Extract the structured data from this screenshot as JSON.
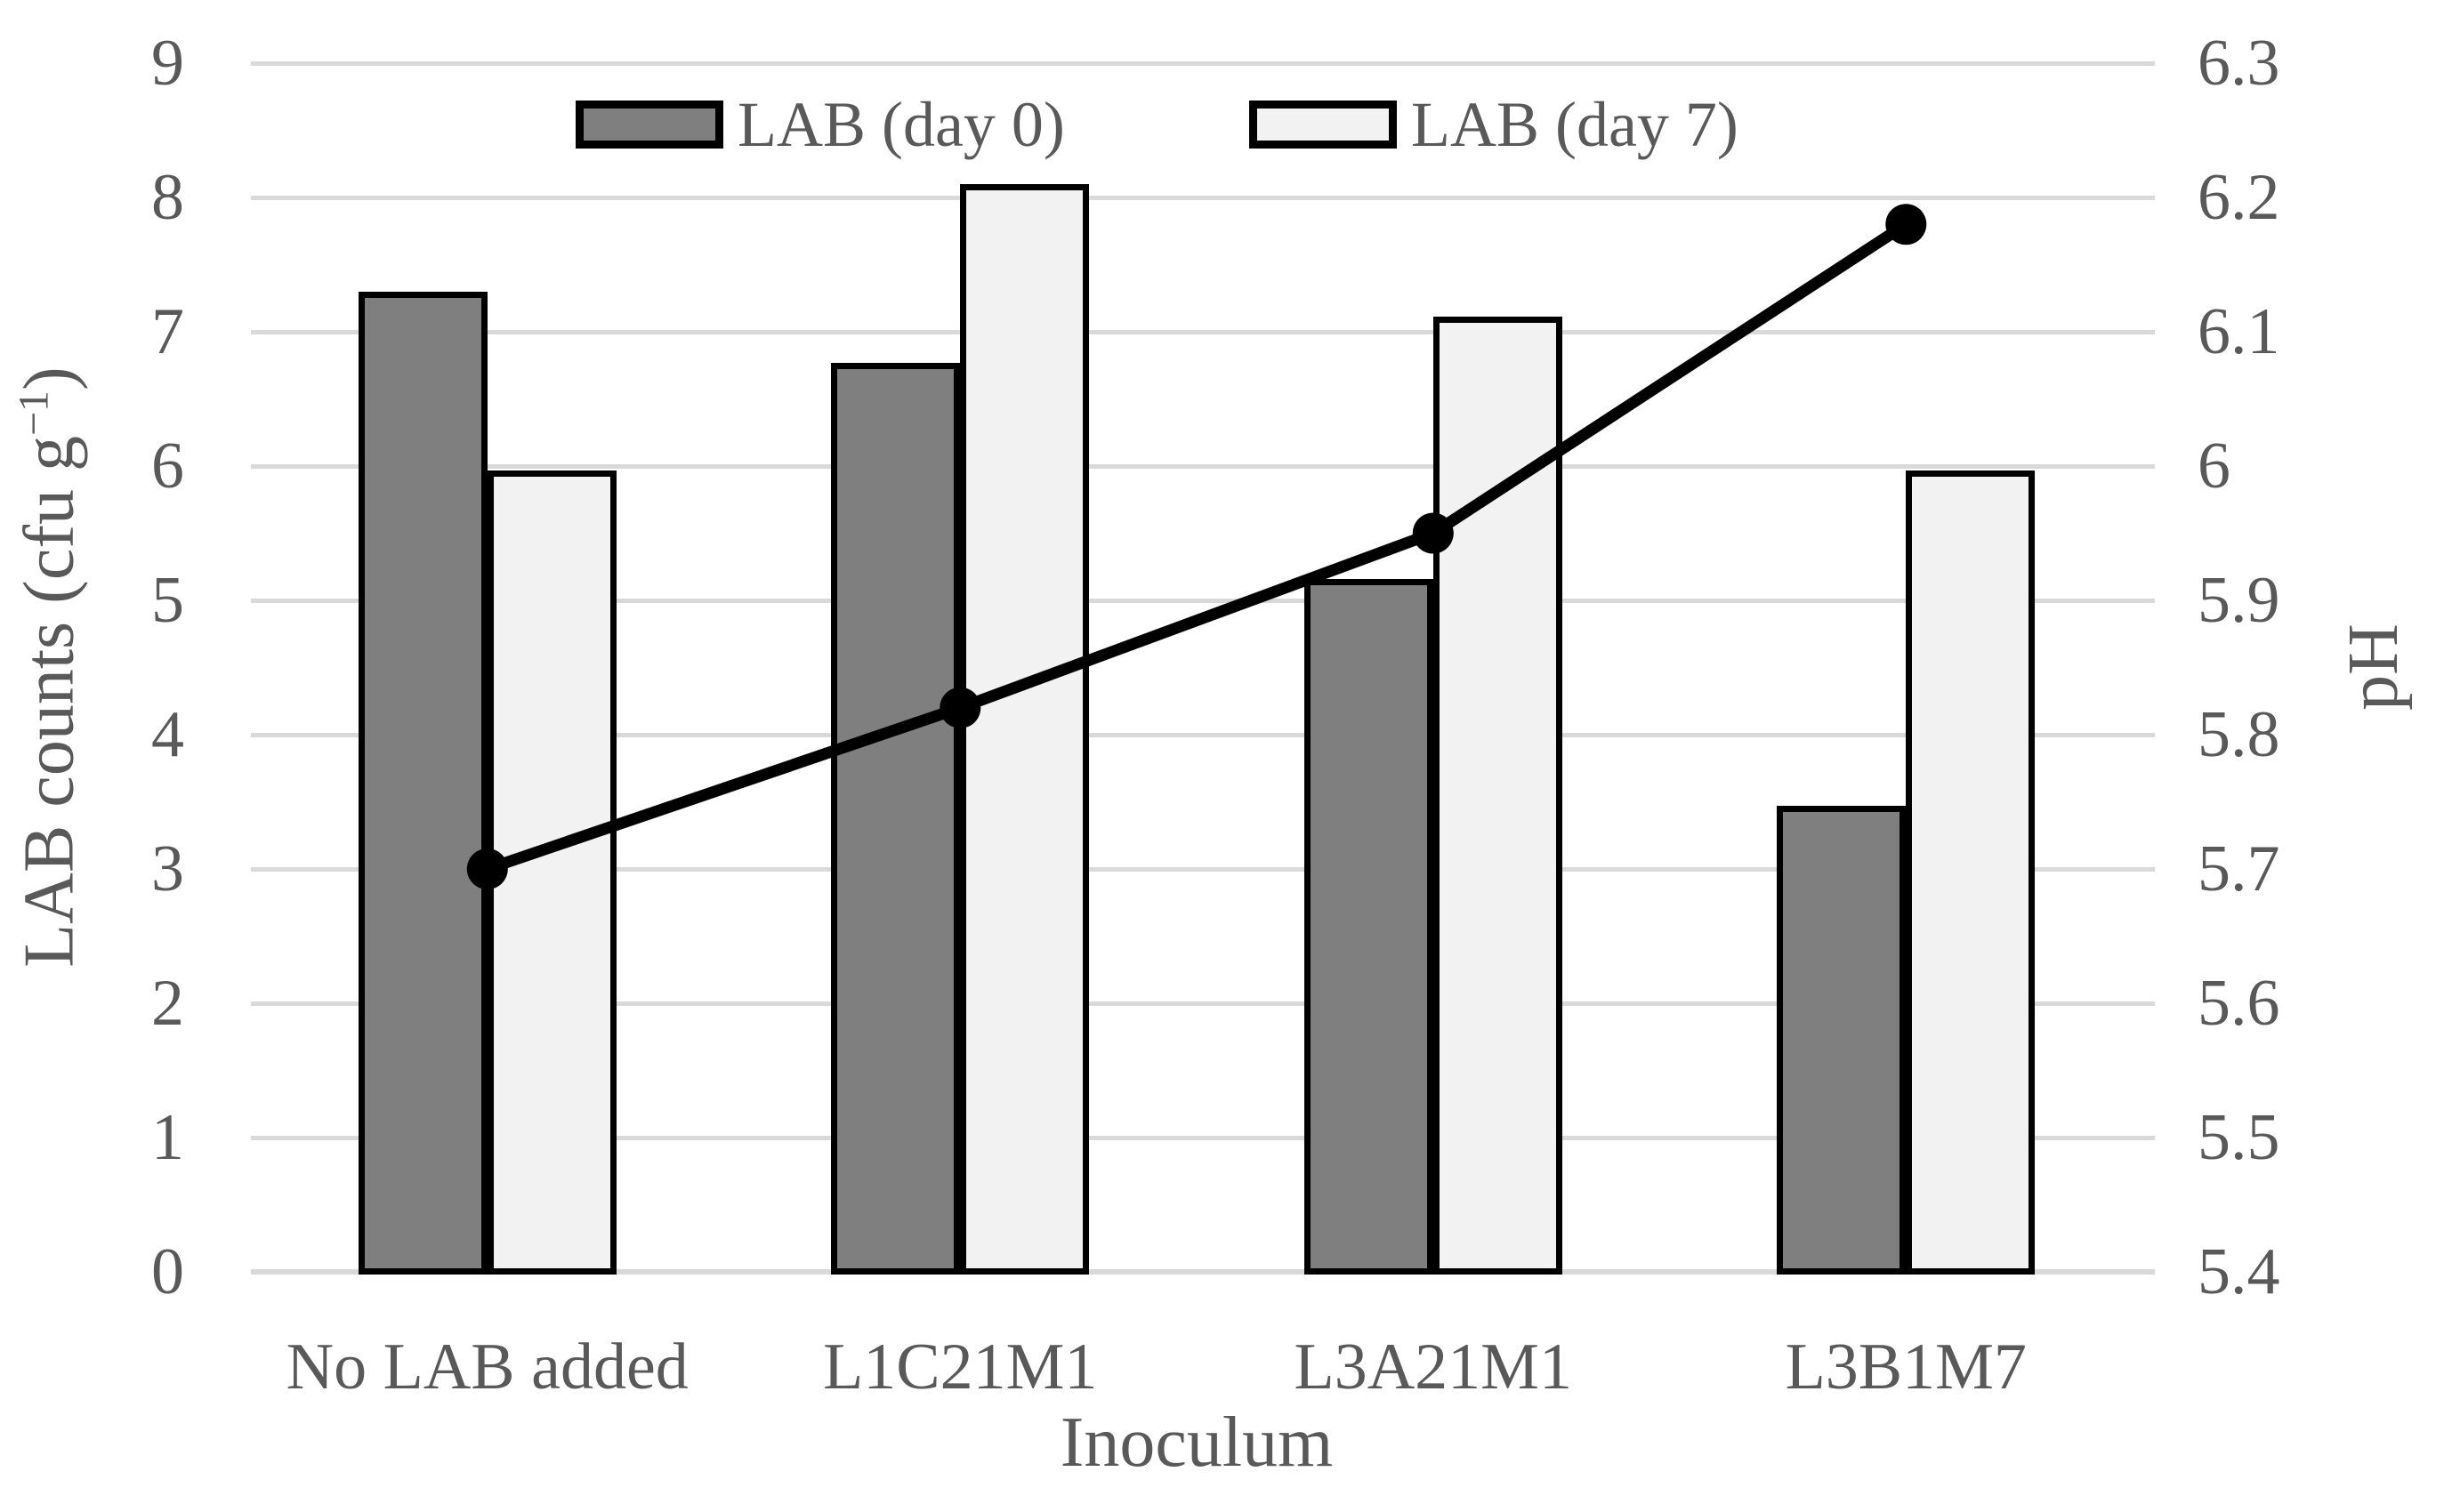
{
  "figure": {
    "background": "#ffffff"
  },
  "colors": {
    "bar_day0": "#7f7f7f",
    "bar_day7": "#f2f2f2",
    "bar_border": "#000000",
    "line": "#000000",
    "gridline": "#d9d9d9",
    "text": "#595959"
  },
  "legend": {
    "items": [
      {
        "label": "LAB (day 0)",
        "color": "#7f7f7f"
      },
      {
        "label": "LAB (day 7)",
        "color": "#f2f2f2"
      }
    ]
  },
  "labels": {
    "x_title": "Inoculum",
    "y_left_pre": "LAB counts (cfu g",
    "y_left_sup": "−1",
    "y_left_post": ")",
    "y_right": "pH"
  },
  "axes": {
    "left": {
      "ticks": [
        "0",
        "1",
        "2",
        "3",
        "4",
        "5",
        "6",
        "7",
        "8",
        "9"
      ]
    },
    "right": {
      "ticks": [
        "5.4",
        "5.5",
        "5.6",
        "5.7",
        "5.8",
        "5.9",
        "6",
        "6.1",
        "6.2",
        "6.3"
      ]
    }
  },
  "chart_data": {
    "type": "bar",
    "subtype": "grouped-bars-with-line-overlay",
    "title": "",
    "categories": [
      "No LAB added",
      "L1C21M1",
      "L3A21M1",
      "L3B1M7"
    ],
    "series": [
      {
        "name": "LAB (day 0)",
        "type": "bar",
        "axis": "left",
        "color": "#7f7f7f",
        "values": [
          7.3,
          6.77,
          5.16,
          3.47
        ]
      },
      {
        "name": "LAB (day 7)",
        "type": "bar",
        "axis": "left",
        "color": "#f2f2f2",
        "values": [
          5.97,
          8.1,
          7.11,
          5.97
        ]
      },
      {
        "name": "pH",
        "type": "line",
        "axis": "right",
        "color": "#000000",
        "values": [
          5.7,
          5.82,
          5.95,
          6.18
        ]
      }
    ],
    "xlabel": "Inoculum",
    "ylabel_left": "LAB counts (cfu g⁻¹)",
    "ylabel_right": "pH",
    "ylim_left": [
      0,
      9
    ],
    "ylim_right": [
      5.4,
      6.3
    ],
    "grid": true,
    "legend_position": "top-inside"
  }
}
